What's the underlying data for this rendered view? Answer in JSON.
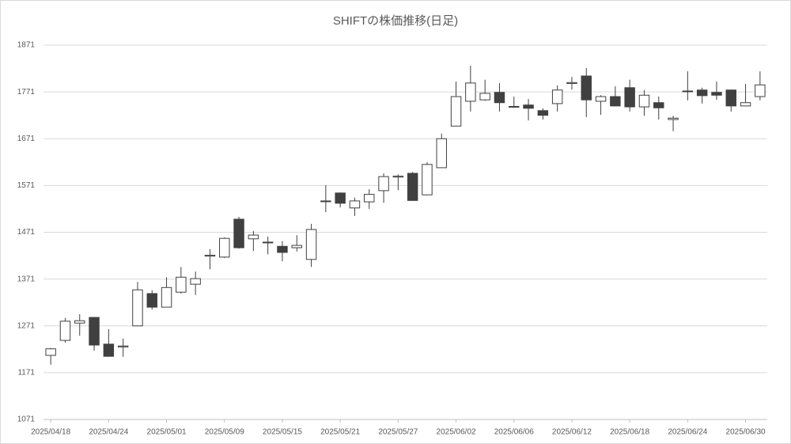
{
  "chart_data": {
    "type": "candlestick",
    "title": "SHIFTの株価推移(日足)",
    "categories": [
      "2025/04/18",
      null,
      null,
      null,
      "2025/04/24",
      null,
      null,
      null,
      "2025/05/01",
      null,
      null,
      null,
      "2025/05/09",
      null,
      null,
      null,
      "2025/05/15",
      null,
      null,
      null,
      "2025/05/21",
      null,
      null,
      null,
      "2025/05/27",
      null,
      null,
      null,
      "2025/06/02",
      null,
      null,
      null,
      "2025/06/06",
      null,
      null,
      null,
      "2025/06/12",
      null,
      null,
      null,
      "2025/06/18",
      null,
      null,
      null,
      "2025/06/24",
      null,
      null,
      null,
      "2025/06/30",
      null
    ],
    "open": [
      1208,
      1240,
      1277,
      1289,
      1232,
      1226,
      1271,
      1340,
      1311,
      1343,
      1360,
      1420,
      1418,
      1499,
      1457,
      1450,
      1441,
      1438,
      1413,
      1537,
      1555,
      1523,
      1536,
      1560,
      1589,
      1597,
      1551,
      1609,
      1698,
      1751,
      1754,
      1770,
      1739,
      1743,
      1731,
      1746,
      1789,
      1805,
      1751,
      1761,
      1780,
      1739,
      1748,
      1712,
      1772,
      1775,
      1770,
      1775,
      1741,
      1761
    ],
    "high": [
      1224,
      1288,
      1296,
      1290,
      1264,
      1244,
      1365,
      1347,
      1375,
      1397,
      1387,
      1435,
      1460,
      1504,
      1474,
      1462,
      1452,
      1465,
      1489,
      1572,
      1556,
      1545,
      1563,
      1597,
      1595,
      1600,
      1621,
      1682,
      1793,
      1827,
      1797,
      1790,
      1761,
      1756,
      1736,
      1785,
      1803,
      1822,
      1764,
      1783,
      1797,
      1775,
      1761,
      1720,
      1815,
      1780,
      1793,
      1776,
      1788,
      1815
    ],
    "low": [
      1188,
      1235,
      1250,
      1218,
      1205,
      1205,
      1271,
      1306,
      1311,
      1340,
      1337,
      1392,
      1416,
      1436,
      1431,
      1424,
      1409,
      1430,
      1397,
      1514,
      1524,
      1506,
      1521,
      1534,
      1561,
      1539,
      1551,
      1609,
      1698,
      1729,
      1752,
      1729,
      1737,
      1710,
      1712,
      1729,
      1776,
      1717,
      1722,
      1740,
      1729,
      1720,
      1712,
      1687,
      1753,
      1746,
      1754,
      1729,
      1741,
      1753
    ],
    "close": [
      1222,
      1281,
      1282,
      1230,
      1206,
      1228,
      1348,
      1311,
      1353,
      1375,
      1372,
      1422,
      1458,
      1438,
      1465,
      1450,
      1428,
      1443,
      1477,
      1538,
      1533,
      1538,
      1552,
      1590,
      1591,
      1539,
      1616,
      1671,
      1761,
      1790,
      1768,
      1748,
      1740,
      1736,
      1721,
      1775,
      1791,
      1754,
      1761,
      1741,
      1739,
      1764,
      1737,
      1715,
      1773,
      1763,
      1764,
      1741,
      1748,
      1786
    ],
    "up_color": "#ffffff",
    "down_color": "#404040",
    "edge_color": "#404040",
    "ylim": [
      1071,
      1871
    ],
    "yticks": [
      1071,
      1171,
      1271,
      1371,
      1471,
      1571,
      1671,
      1771,
      1871
    ],
    "grid": true
  }
}
